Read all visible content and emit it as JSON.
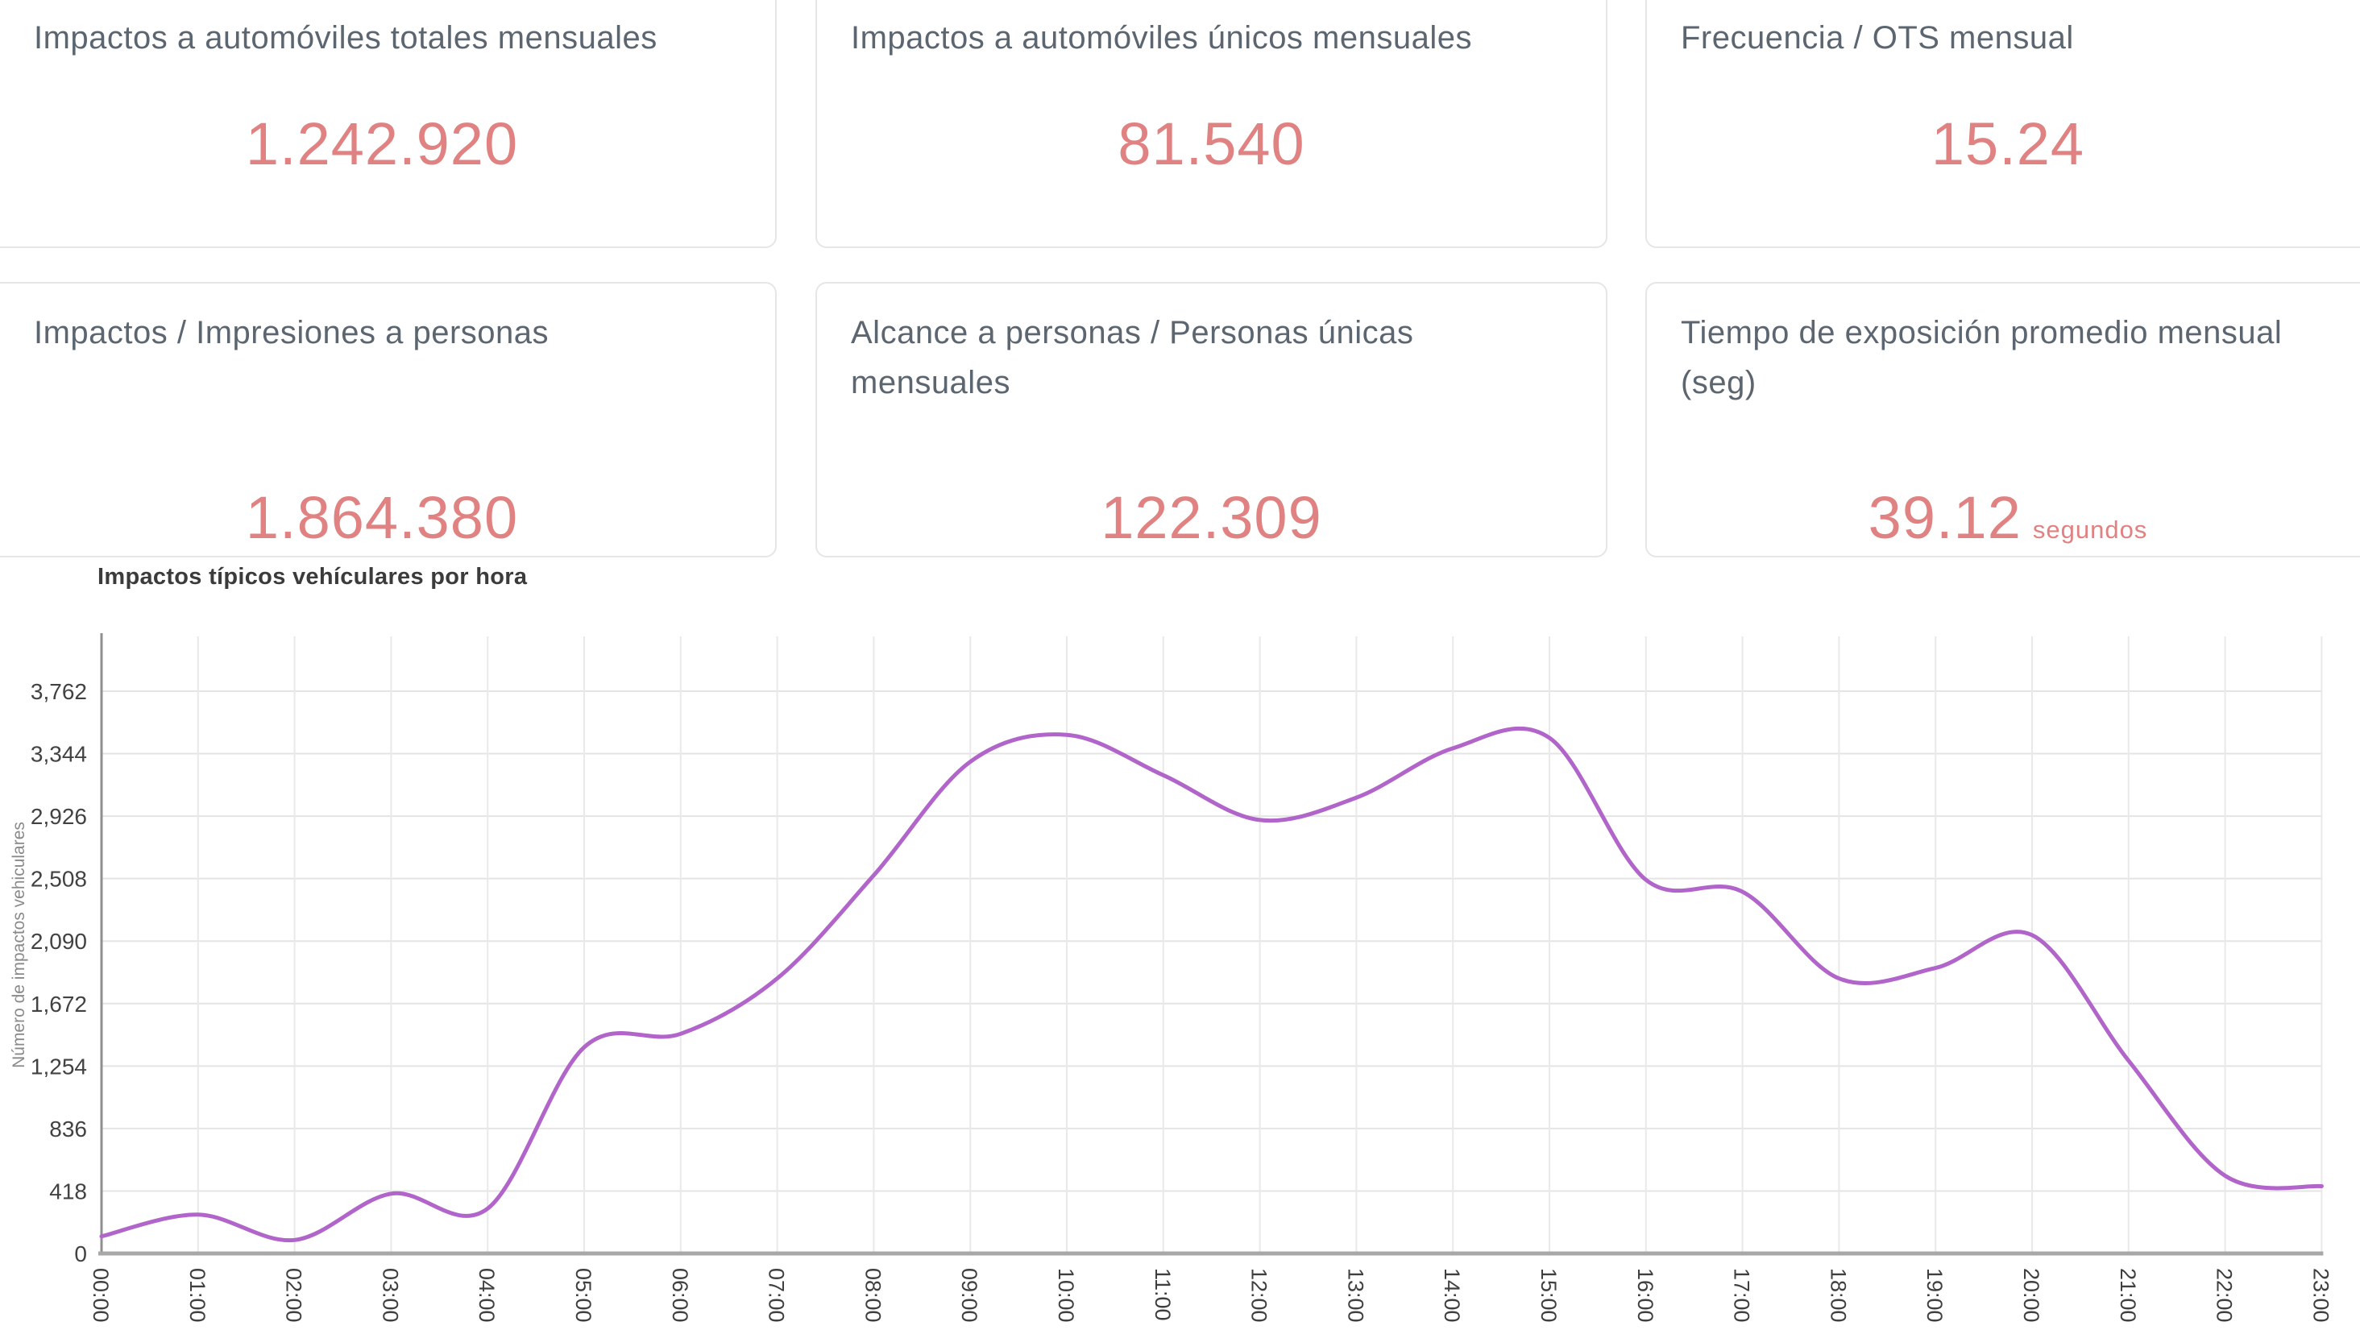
{
  "cards": [
    {
      "title": "Impactos a automóviles totales mensuales",
      "value": "1.242.920"
    },
    {
      "title": "Impactos a automóviles únicos mensuales",
      "value": "81.540"
    },
    {
      "title": "Frecuencia / OTS mensual",
      "value": "15.24"
    },
    {
      "title": "Impactos / Impresiones a personas",
      "value": "1.864.380"
    },
    {
      "title": "Alcance a personas / Personas únicas mensuales",
      "value": "122.309"
    },
    {
      "title": "Tiempo de exposición promedio mensual (seg)",
      "value": "39.12",
      "suffix": "segundos"
    }
  ],
  "colors": {
    "kpi_value": "#e08282",
    "card_title": "#5c6670",
    "line": "#b164c9",
    "axis_label": "#424242",
    "grid": "#e7e7e7"
  },
  "chart_data": {
    "type": "line",
    "title": "Impactos típicos vehículares por hora",
    "xlabel": "",
    "ylabel": "Número de impactos vehiculares",
    "x": [
      "00:00",
      "01:00",
      "02:00",
      "03:00",
      "04:00",
      "05:00",
      "06:00",
      "07:00",
      "08:00",
      "09:00",
      "10:00",
      "11:00",
      "12:00",
      "13:00",
      "14:00",
      "15:00",
      "16:00",
      "17:00",
      "18:00",
      "19:00",
      "20:00",
      "21:00",
      "22:00",
      "23:00"
    ],
    "values": [
      115,
      260,
      90,
      400,
      300,
      1380,
      1470,
      1840,
      2530,
      3290,
      3470,
      3200,
      2900,
      3050,
      3380,
      3450,
      2500,
      2420,
      1840,
      1910,
      2130,
      1290,
      520,
      450
    ],
    "ylim": [
      0,
      4180
    ],
    "ytick_interval": 418,
    "ytick_labels": [
      "0",
      "418",
      "836",
      "1,254",
      "1,672",
      "2,090",
      "2,508",
      "2,926",
      "3,344",
      "3,762"
    ],
    "grid": true,
    "smooth": true,
    "legend": "none",
    "line_color": "#b164c9"
  }
}
